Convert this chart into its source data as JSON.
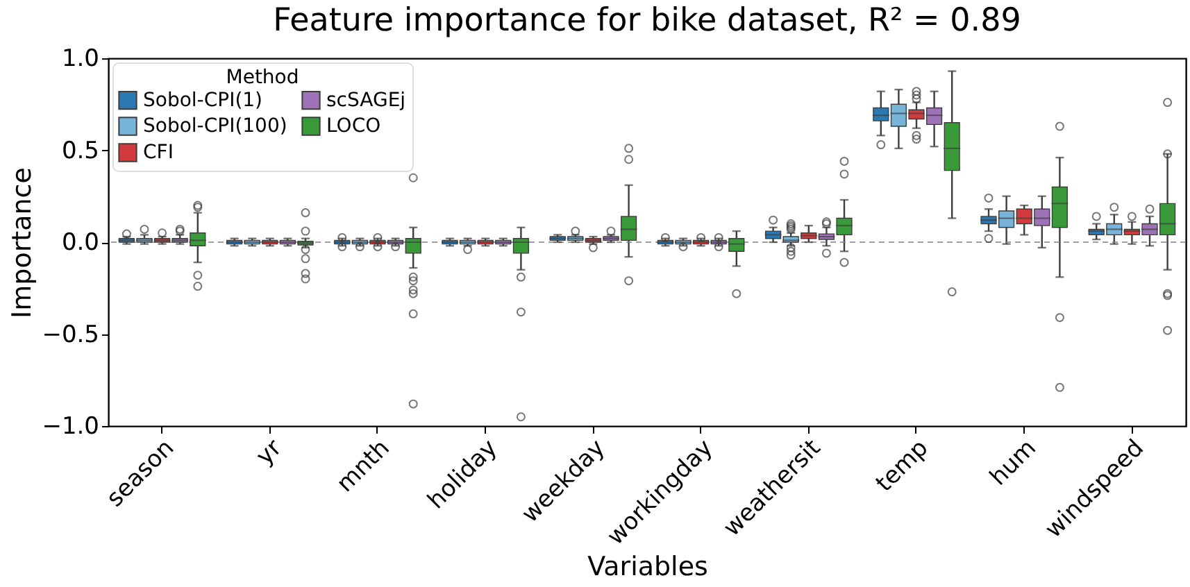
{
  "chart_data": {
    "type": "box",
    "title": "Feature importance for bike dataset, R² = 0.89",
    "xlabel": "Variables",
    "ylabel": "Importance",
    "legend_title": "Method",
    "legend": "top left",
    "categories": [
      "season",
      "yr",
      "mnth",
      "holiday",
      "weekday",
      "workingday",
      "weathersit",
      "temp",
      "hum",
      "windspeed"
    ],
    "ylim": [
      -1.0,
      1.0
    ],
    "yticks": [
      {
        "value": -1.0,
        "label": "−1.0"
      },
      {
        "value": -0.5,
        "label": "−0.5"
      },
      {
        "value": 0,
        "label": "0.0"
      },
      {
        "value": 0.5,
        "label": "0.5"
      },
      {
        "value": 1.0,
        "label": "1.0"
      }
    ],
    "ref_lines": [
      {
        "axis": "y",
        "value": 0,
        "color": "#808080",
        "line_style": "dashed"
      }
    ],
    "series": [
      {
        "name": "Sobol-CPI(1)",
        "color": "#2b78b2",
        "boxes": [
          {
            "low": -0.01,
            "q1": 0.0,
            "median": 0.01,
            "q3": 0.02,
            "high": 0.03,
            "outliers": [
              0.045
            ]
          },
          {
            "low": -0.02,
            "q1": -0.01,
            "median": 0,
            "q3": 0.01,
            "high": 0.02
          },
          {
            "low": -0.02,
            "q1": -0.01,
            "median": 0,
            "q3": 0.01,
            "high": 0.02,
            "outliers": [
              0.025,
              -0.025
            ]
          },
          {
            "low": -0.02,
            "q1": -0.01,
            "median": 0,
            "q3": 0.01,
            "high": 0.02
          },
          {
            "low": 0.0,
            "q1": 0.01,
            "median": 0.02,
            "q3": 0.03,
            "high": 0.04
          },
          {
            "low": -0.02,
            "q1": -0.01,
            "median": 0,
            "q3": 0.01,
            "high": 0.02,
            "outliers": [
              0.025
            ]
          },
          {
            "low": 0.0,
            "q1": 0.02,
            "median": 0.04,
            "q3": 0.06,
            "high": 0.08,
            "outliers": [
              0.12
            ]
          },
          {
            "low": 0.58,
            "q1": 0.66,
            "median": 0.69,
            "q3": 0.73,
            "high": 0.82,
            "outliers": [
              0.53
            ]
          },
          {
            "low": 0.06,
            "q1": 0.1,
            "median": 0.12,
            "q3": 0.14,
            "high": 0.18,
            "outliers": [
              0.24,
              0.02
            ]
          },
          {
            "low": 0.015,
            "q1": 0.04,
            "median": 0.06,
            "q3": 0.07,
            "high": 0.1,
            "outliers": [
              0.14
            ]
          }
        ]
      },
      {
        "name": "Sobol-CPI(100)",
        "color": "#78b4d8",
        "boxes": [
          {
            "low": -0.01,
            "q1": 0.0,
            "median": 0.01,
            "q3": 0.02,
            "high": 0.04,
            "outliers": [
              0.07
            ]
          },
          {
            "low": -0.02,
            "q1": -0.01,
            "median": 0,
            "q3": 0.01,
            "high": 0.02
          },
          {
            "low": -0.02,
            "q1": -0.01,
            "median": 0,
            "q3": 0.01,
            "high": 0.02,
            "outliers": [
              -0.025
            ]
          },
          {
            "low": -0.02,
            "q1": -0.01,
            "median": 0,
            "q3": 0.01,
            "high": 0.02,
            "outliers": [
              -0.04
            ]
          },
          {
            "low": 0.0,
            "q1": 0.01,
            "median": 0.02,
            "q3": 0.03,
            "high": 0.04,
            "outliers": [
              0.06
            ]
          },
          {
            "low": -0.02,
            "q1": -0.01,
            "median": 0,
            "q3": 0.01,
            "high": 0.02,
            "outliers": [
              -0.025
            ]
          },
          {
            "low": -0.02,
            "q1": 0.0,
            "median": 0.01,
            "q3": 0.03,
            "high": 0.05,
            "outliers": [
              0.07,
              0.08,
              0.09,
              0.1,
              -0.03,
              -0.05,
              -0.07
            ]
          },
          {
            "low": 0.51,
            "q1": 0.63,
            "median": 0.7,
            "q3": 0.75,
            "high": 0.83
          },
          {
            "low": -0.01,
            "q1": 0.08,
            "median": 0.13,
            "q3": 0.17,
            "high": 0.25
          },
          {
            "low": -0.01,
            "q1": 0.04,
            "median": 0.07,
            "q3": 0.1,
            "high": 0.15,
            "outliers": [
              0.19
            ]
          }
        ]
      },
      {
        "name": "CFI",
        "color": "#d33a3c",
        "boxes": [
          {
            "low": -0.01,
            "q1": 0.0,
            "median": 0.01,
            "q3": 0.02,
            "high": 0.03,
            "outliers": [
              0.05
            ]
          },
          {
            "low": -0.02,
            "q1": -0.01,
            "median": 0,
            "q3": 0.01,
            "high": 0.02
          },
          {
            "low": -0.02,
            "q1": -0.01,
            "median": 0,
            "q3": 0.01,
            "high": 0.02,
            "outliers": [
              0.025,
              -0.025
            ]
          },
          {
            "low": -0.02,
            "q1": -0.01,
            "median": 0,
            "q3": 0.01,
            "high": 0.02
          },
          {
            "low": -0.01,
            "q1": 0.0,
            "median": 0.01,
            "q3": 0.02,
            "high": 0.03,
            "outliers": [
              -0.03
            ]
          },
          {
            "low": -0.02,
            "q1": -0.01,
            "median": 0,
            "q3": 0.01,
            "high": 0.02,
            "outliers": [
              0.025
            ]
          },
          {
            "low": 0.0,
            "q1": 0.02,
            "median": 0.035,
            "q3": 0.05,
            "high": 0.09
          },
          {
            "low": 0.62,
            "q1": 0.67,
            "median": 0.7,
            "q3": 0.72,
            "high": 0.76,
            "outliers": [
              0.82,
              0.8,
              0.78,
              0.58,
              0.56
            ]
          },
          {
            "low": 0.04,
            "q1": 0.1,
            "median": 0.13,
            "q3": 0.18,
            "high": 0.2
          },
          {
            "low": -0.01,
            "q1": 0.04,
            "median": 0.06,
            "q3": 0.07,
            "high": 0.11,
            "outliers": [
              0.14
            ]
          }
        ]
      },
      {
        "name": "scSAGEj",
        "color": "#9d72b7",
        "boxes": [
          {
            "low": -0.01,
            "q1": 0.0,
            "median": 0.01,
            "q3": 0.02,
            "high": 0.04,
            "outliers": [
              0.07,
              0.06
            ]
          },
          {
            "low": -0.02,
            "q1": -0.01,
            "median": 0,
            "q3": 0.01,
            "high": 0.02
          },
          {
            "low": -0.02,
            "q1": -0.01,
            "median": 0,
            "q3": 0.01,
            "high": 0.02,
            "outliers": [
              -0.025
            ]
          },
          {
            "low": -0.02,
            "q1": -0.01,
            "median": 0,
            "q3": 0.01,
            "high": 0.02
          },
          {
            "low": 0.0,
            "q1": 0.01,
            "median": 0.02,
            "q3": 0.03,
            "high": 0.04,
            "outliers": [
              0.06
            ]
          },
          {
            "low": -0.02,
            "q1": -0.01,
            "median": 0,
            "q3": 0.01,
            "high": 0.02,
            "outliers": [
              0.025,
              -0.025
            ]
          },
          {
            "low": -0.02,
            "q1": 0.015,
            "median": 0.03,
            "q3": 0.045,
            "high": 0.08,
            "outliers": [
              0.1,
              0.11,
              -0.06
            ]
          },
          {
            "low": 0.52,
            "q1": 0.64,
            "median": 0.69,
            "q3": 0.73,
            "high": 0.82
          },
          {
            "low": -0.03,
            "q1": 0.09,
            "median": 0.13,
            "q3": 0.18,
            "high": 0.25
          },
          {
            "low": -0.02,
            "q1": 0.04,
            "median": 0.07,
            "q3": 0.1,
            "high": 0.14,
            "outliers": [
              0.18
            ]
          }
        ]
      },
      {
        "name": "LOCO",
        "color": "#3a9a3a",
        "boxes": [
          {
            "low": -0.11,
            "q1": -0.02,
            "median": 0.01,
            "q3": 0.05,
            "high": 0.16,
            "outliers": [
              0.2,
              0.19,
              -0.18,
              -0.24
            ]
          },
          {
            "low": -0.03,
            "q1": -0.015,
            "median": -0.005,
            "q3": 0.005,
            "high": 0.02,
            "outliers": [
              0.16,
              0.06,
              -0.04,
              -0.09,
              -0.17,
              -0.2
            ]
          },
          {
            "low": -0.14,
            "q1": -0.06,
            "median": 0.0,
            "q3": 0.02,
            "high": 0.08,
            "outliers": [
              0.35,
              -0.19,
              -0.21,
              -0.26,
              -0.28,
              -0.39,
              -0.88
            ]
          },
          {
            "low": -0.15,
            "q1": -0.06,
            "median": 0.0,
            "q3": 0.02,
            "high": 0.08,
            "outliers": [
              -0.19,
              -0.38,
              -0.95
            ]
          },
          {
            "low": -0.08,
            "q1": 0.01,
            "median": 0.07,
            "q3": 0.14,
            "high": 0.31,
            "outliers": [
              0.51,
              0.45,
              -0.21
            ]
          },
          {
            "low": -0.13,
            "q1": -0.05,
            "median": -0.01,
            "q3": 0.02,
            "high": 0.06,
            "outliers": [
              -0.28
            ]
          },
          {
            "low": -0.05,
            "q1": 0.04,
            "median": 0.09,
            "q3": 0.13,
            "high": 0.23,
            "outliers": [
              0.44,
              0.37,
              -0.11
            ]
          },
          {
            "low": 0.13,
            "q1": 0.39,
            "median": 0.51,
            "q3": 0.65,
            "high": 0.93,
            "outliers": [
              -0.27
            ]
          },
          {
            "low": -0.19,
            "q1": 0.08,
            "median": 0.21,
            "q3": 0.3,
            "high": 0.46,
            "outliers": [
              0.63,
              -0.41,
              -0.79
            ]
          },
          {
            "low": -0.15,
            "q1": 0.04,
            "median": 0.1,
            "q3": 0.21,
            "high": 0.48,
            "outliers": [
              0.76,
              0.48,
              -0.28,
              -0.29,
              -0.48
            ]
          }
        ]
      }
    ]
  }
}
